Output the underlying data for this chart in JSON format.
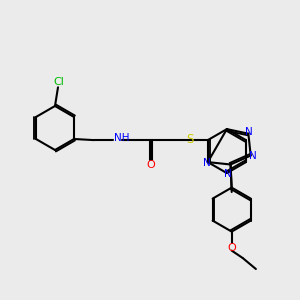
{
  "bg_color": "#ebebeb",
  "bond_color": "#000000",
  "bond_lw": 1.5,
  "atom_colors": {
    "N": "#0000ff",
    "O": "#ff0000",
    "S": "#cccc00",
    "Cl": "#00bb00",
    "C": "#000000",
    "H": "#555555"
  },
  "font_size": 7.5
}
